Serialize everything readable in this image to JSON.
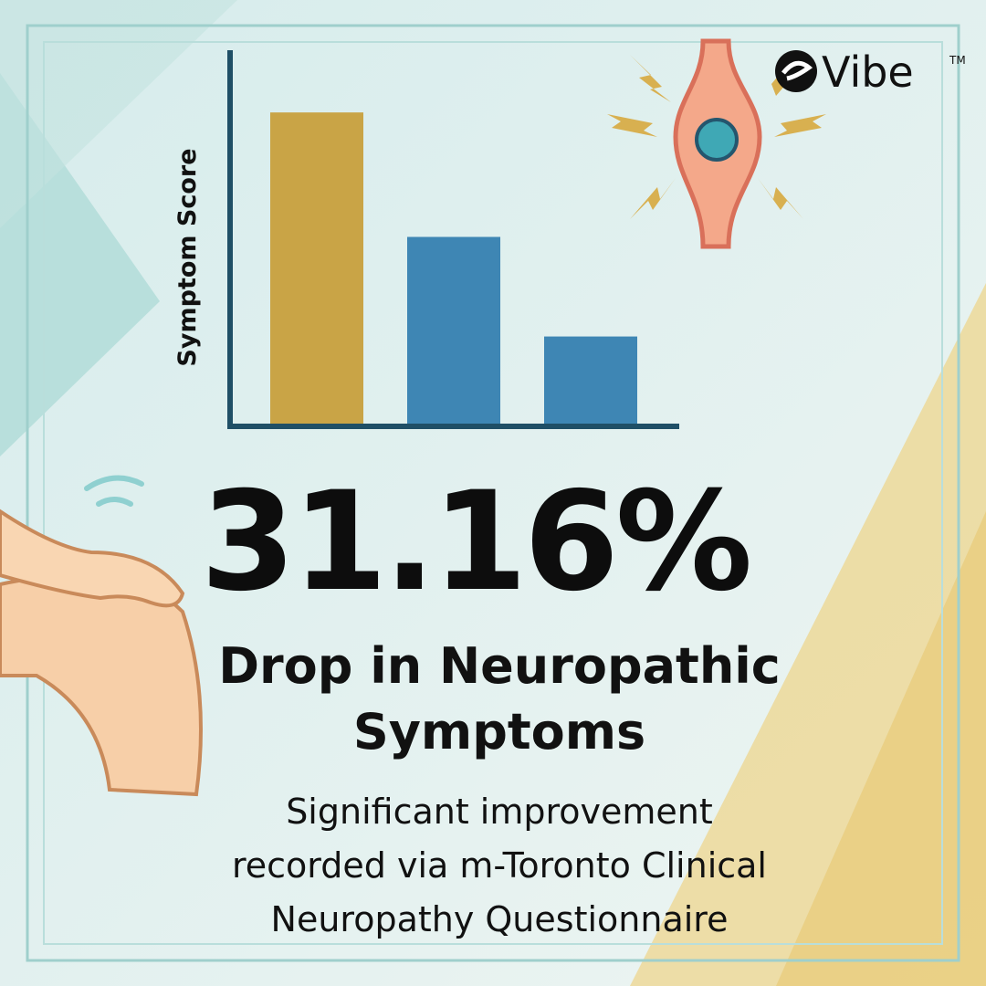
{
  "brand": {
    "name": "Vibe",
    "mark": "TM"
  },
  "chart_data": {
    "type": "bar",
    "y_label": "Symptom Score",
    "categories": [
      null,
      null,
      null
    ],
    "values": [
      100,
      60,
      28
    ],
    "colors": [
      "#c9a446",
      "#3e86b4",
      "#3e86b4"
    ],
    "ylim": [
      0,
      120
    ]
  },
  "headline": "31.16%",
  "heading": [
    "Drop in Neuropathic",
    "Symptoms"
  ],
  "description": [
    "Significant improvement",
    "recorded via m-Toronto Clinical",
    "Neuropathy Questionnaire"
  ]
}
